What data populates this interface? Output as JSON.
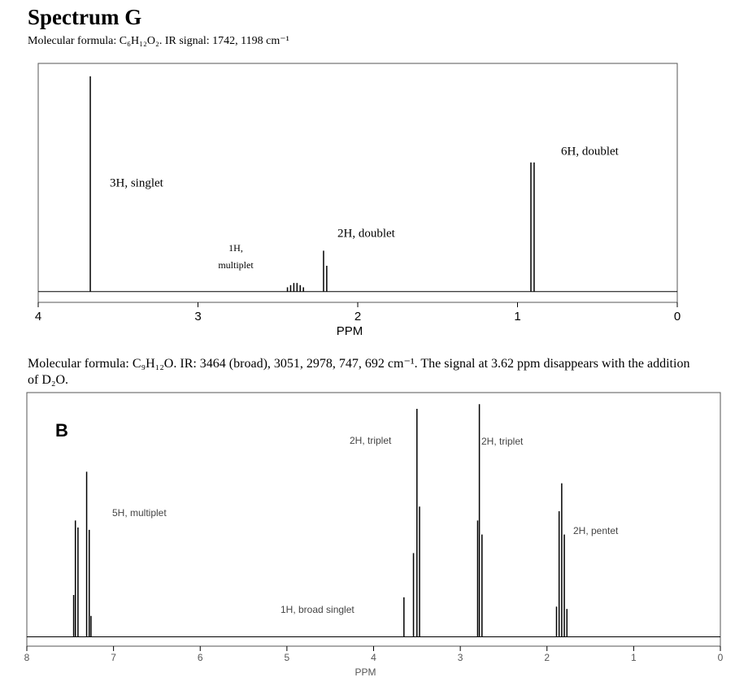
{
  "chart_data": [
    {
      "type": "nmr",
      "title": "Spectrum G",
      "subtitle": "Molecular formula: C₆H₁₂O₂.  IR signal:  1742, 1198 cm⁻¹",
      "xlabel": "PPM",
      "xlim": [
        4,
        0
      ],
      "xticks": [
        4,
        3,
        2,
        1,
        0
      ],
      "ylim": [
        -5,
        106
      ],
      "x": [
        3.674,
        2.44,
        2.42,
        2.4,
        2.38,
        2.36,
        2.34,
        2.214,
        2.194,
        0.916,
        0.896
      ],
      "values": [
        100,
        2,
        3,
        4,
        4,
        3,
        2,
        19,
        12,
        60,
        60
      ],
      "annotations": [
        "3H, singlet",
        "1H,",
        "multiplet",
        "2H, doublet",
        "6H, doublet"
      ]
    },
    {
      "type": "nmr",
      "subtitle": "Molecular formula:  C₉H₁₂O. IR:  3464 (broad), 3051, 2978, 747, 692 cm⁻¹.  The signal at 3.62 ppm disappears with the addition of D₂O.",
      "xlabel": "PPM",
      "xlim": [
        8,
        0
      ],
      "xticks": [
        8,
        7,
        6,
        5,
        4,
        3,
        2,
        1,
        0
      ],
      "ylim": [
        -4,
        105
      ],
      "x": [
        7.46,
        7.44,
        7.41,
        7.31,
        7.28,
        7.26,
        3.65,
        3.54,
        3.5,
        3.47,
        2.8,
        2.78,
        2.75,
        1.89,
        1.86,
        1.83,
        1.8,
        1.77
      ],
      "values": [
        18,
        50,
        47,
        71,
        46,
        9,
        17,
        36,
        98,
        56,
        50,
        100,
        44,
        13,
        54,
        66,
        44,
        12
      ],
      "annotations": [
        "B",
        "2H, triplet",
        "2H, triplet",
        "5H, multiplet",
        "2H, pentet",
        "1H, broad singlet"
      ]
    }
  ]
}
